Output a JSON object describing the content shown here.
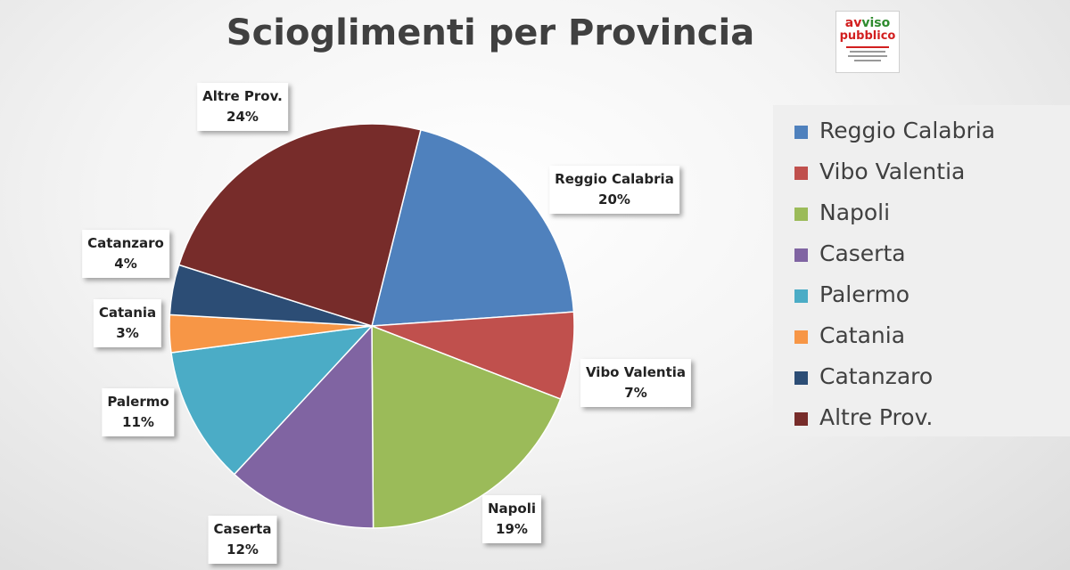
{
  "logo": {
    "line1_a": "av",
    "line1_b": "viso",
    "line2": "pubblico"
  },
  "chart_data": {
    "type": "pie",
    "title": "Scioglimenti per Provincia",
    "legend_position": "right",
    "slices": [
      {
        "label": "Reggio Calabria",
        "value": 20,
        "display": "20%",
        "color": "#4f81bd"
      },
      {
        "label": "Vibo Valentia",
        "value": 7,
        "display": "7%",
        "color": "#c0504d"
      },
      {
        "label": "Napoli",
        "value": 19,
        "display": "19%",
        "color": "#9bbb59"
      },
      {
        "label": "Caserta",
        "value": 12,
        "display": "12%",
        "color": "#8064a2"
      },
      {
        "label": "Palermo",
        "value": 11,
        "display": "11%",
        "color": "#4bacc6"
      },
      {
        "label": "Catania",
        "value": 3,
        "display": "3%",
        "color": "#f79646"
      },
      {
        "label": "Catanzaro",
        "value": 4,
        "display": "4%",
        "color": "#2c4d75"
      },
      {
        "label": "Altre Prov.",
        "value": 24,
        "display": "24%",
        "color": "#772c2a"
      }
    ]
  }
}
